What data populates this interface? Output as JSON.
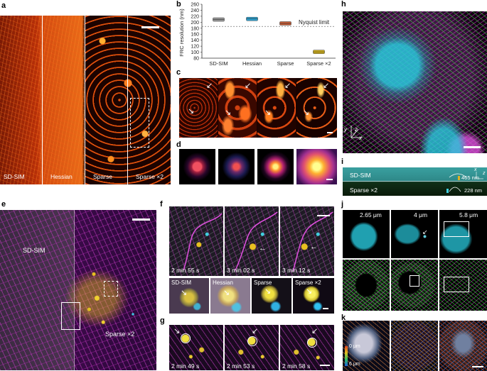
{
  "panel_letters": {
    "a": "a",
    "b": "b",
    "c": "c",
    "d": "d",
    "e": "e",
    "f": "f",
    "g": "g",
    "h": "h",
    "i": "i",
    "j": "j",
    "k": "k"
  },
  "panel_a": {
    "labels": [
      "SD-SIM",
      "Hessian",
      "Sparse",
      "Sparse ×2"
    ]
  },
  "chart_data": {
    "type": "box",
    "title": "",
    "ylabel": "FRC resolution (nm)",
    "xlabel": "",
    "categories": [
      "SD-SIM",
      "Hessian",
      "Sparse",
      "Sparse ×2"
    ],
    "values": [
      209,
      211,
      196,
      101
    ],
    "yticks": [
      80,
      100,
      120,
      140,
      160,
      180,
      200,
      220,
      240,
      260
    ],
    "ylim": [
      80,
      260
    ],
    "reference_line": {
      "label": "Nyquist limit",
      "value": 186
    },
    "colors": [
      "#9a9a9a",
      "#2fa8d8",
      "#c8603a",
      "#d4b21a"
    ]
  },
  "panel_e": {
    "left_label": "SD-SIM",
    "right_label": "Sparse ×2"
  },
  "panel_f": {
    "times": [
      "2 min 55 s",
      "3 min 02 s",
      "3 min 12 s"
    ],
    "methods": [
      "SD-SIM",
      "Hessian",
      "Sparse",
      "Sparse ×2"
    ]
  },
  "panel_g": {
    "times": [
      "2 min 49 s",
      "2 min 53 s",
      "2 min 58 s"
    ]
  },
  "panel_h": {
    "axis_y": "y",
    "axis_z": "z",
    "axis_x": "x"
  },
  "panel_i": {
    "top_label": "SD-SIM",
    "bottom_label": "Sparse ×2",
    "measure_top": "465 nm",
    "measure_bottom": "228 nm",
    "axis_x": "x",
    "axis_z": "z"
  },
  "panel_j": {
    "depths": [
      "2.65 μm",
      "4 μm",
      "5.8 μm"
    ]
  },
  "panel_k": {
    "depth_min": "0 μm",
    "depth_max": "6 μm"
  }
}
